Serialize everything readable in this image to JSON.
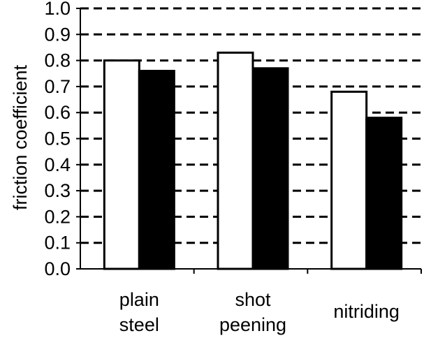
{
  "chart_data": {
    "type": "bar",
    "title": "",
    "xlabel": "",
    "ylabel": "friction coefficient",
    "ylim": [
      0,
      1.0
    ],
    "yticks": [
      "0.0",
      "0.1",
      "0.2",
      "0.3",
      "0.4",
      "0.5",
      "0.6",
      "0.7",
      "0.8",
      "0.9",
      "1.0"
    ],
    "grid": "dashed horizontal",
    "legend": "none",
    "categories": [
      [
        "plain",
        "steel"
      ],
      [
        "shot",
        "peening"
      ],
      [
        "nitriding"
      ]
    ],
    "series": [
      {
        "values": [
          0.8,
          0.83,
          0.68
        ],
        "color": "#ffffff"
      },
      {
        "values": [
          0.76,
          0.77,
          0.58
        ],
        "color": "#000000"
      }
    ]
  }
}
